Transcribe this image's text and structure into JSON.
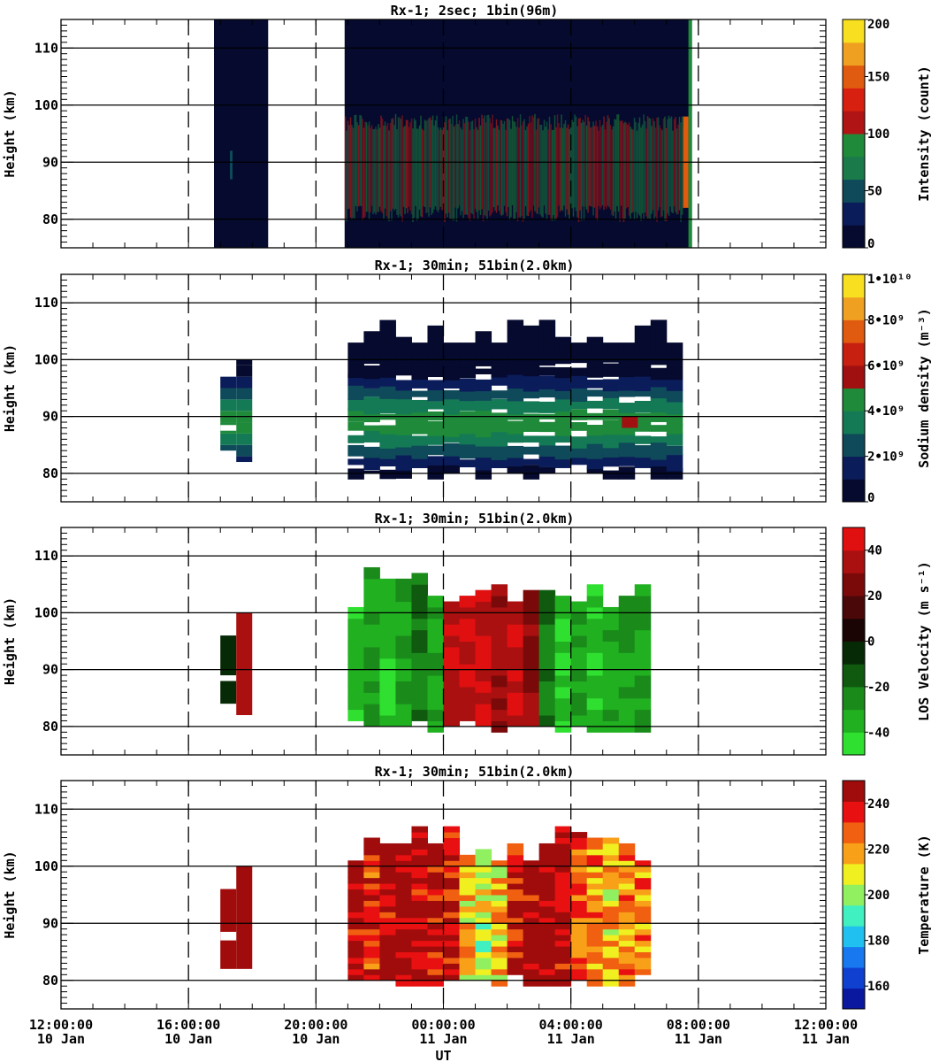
{
  "chart_data": [
    {
      "type": "heatmap",
      "title": "Rx-1;  2sec; 1bin(96m)",
      "ylabel": "Height (km)",
      "ylim": [
        75,
        115
      ],
      "yticks": [
        "80",
        "90",
        "100",
        "110"
      ],
      "colorbar_label": "Intensity (count)",
      "colorbar_ticks": [
        "0",
        "50",
        "100",
        "150",
        "200"
      ],
      "colorbar_range": [
        0,
        200
      ],
      "colorbar_steps": 8,
      "data_blocks": [
        {
          "start_hour": 16.8,
          "end_hour": 18.5,
          "kind": "dark"
        },
        {
          "start_hour": 20.9,
          "end_hour": 31.8,
          "kind": "intensity"
        }
      ],
      "layer": {
        "bottom_km": 81,
        "top_km": 97,
        "peak_km": 89
      }
    },
    {
      "type": "heatmap",
      "title": "Rx-1; 30min; 51bin(2.0km)",
      "ylabel": "Height (km)",
      "ylim": [
        75,
        115
      ],
      "yticks": [
        "80",
        "90",
        "100",
        "110"
      ],
      "colorbar_label": "Sodium density (m⁻³)",
      "colorbar_ticks": [
        "0",
        "2•10⁹",
        "4•10⁹",
        "6•10⁹",
        "8•10⁹",
        "1•10¹⁰"
      ],
      "colorbar_range": [
        0,
        10000000000
      ],
      "colorbar_steps": 10,
      "cells": [
        {
          "start_hour": 17.0,
          "end_hour": 17.5,
          "bottom_km": 84,
          "top_km": 97
        },
        {
          "start_hour": 17.5,
          "end_hour": 18.0,
          "bottom_km": 82,
          "top_km": 100
        },
        {
          "start_hour": 21.0,
          "end_hour": 31.5,
          "bottom_km": 79,
          "top_km": 107
        }
      ]
    },
    {
      "type": "heatmap",
      "title": "Rx-1; 30min; 51bin(2.0km)",
      "ylabel": "Height (km)",
      "ylim": [
        75,
        115
      ],
      "yticks": [
        "80",
        "90",
        "100",
        "110"
      ],
      "colorbar_label": "LOS Velocity (m s⁻¹)",
      "colorbar_ticks": [
        "-40",
        "-20",
        "0",
        "20",
        "40"
      ],
      "colorbar_range": [
        -50,
        50
      ],
      "colorbar_steps": 10,
      "columns_velocity": [
        -40,
        -30,
        -40,
        -30,
        -20,
        -30,
        40,
        40,
        40,
        30,
        40,
        30,
        -20,
        -40,
        -30,
        -40,
        -30,
        -30,
        -30
      ],
      "columns_start_hour": 21.0,
      "column_width_hour": 0.5
    },
    {
      "type": "heatmap",
      "title": "Rx-1; 30min; 51bin(2.0km)",
      "ylabel": "Height (km)",
      "ylim": [
        75,
        115
      ],
      "yticks": [
        "80",
        "90",
        "100",
        "110"
      ],
      "colorbar_label": "Temperature (K)",
      "colorbar_ticks": [
        "160",
        "180",
        "200",
        "220",
        "240"
      ],
      "colorbar_range": [
        150,
        250
      ],
      "colorbar_steps": 10,
      "columns_temperature": [
        245,
        230,
        245,
        250,
        245,
        240,
        235,
        215,
        205,
        215,
        235,
        245,
        250,
        245,
        230,
        220,
        215,
        225,
        220
      ],
      "columns_start_hour": 21.0,
      "column_width_hour": 0.5
    }
  ],
  "x_axis": {
    "label": "UT",
    "range_hours": [
      12,
      36
    ],
    "ticks": [
      {
        "hour": 12,
        "time": "12:00:00",
        "date": "10 Jan"
      },
      {
        "hour": 16,
        "time": "16:00:00",
        "date": "10 Jan"
      },
      {
        "hour": 20,
        "time": "20:00:00",
        "date": "10 Jan"
      },
      {
        "hour": 24,
        "time": "00:00:00",
        "date": "11 Jan"
      },
      {
        "hour": 28,
        "time": "04:00:00",
        "date": "11 Jan"
      },
      {
        "hour": 32,
        "time": "08:00:00",
        "date": "11 Jan"
      },
      {
        "hour": 36,
        "time": "12:00:00",
        "date": "11 Jan"
      }
    ]
  },
  "colors": {
    "intensity": [
      "#050a2e",
      "#0b1c5a",
      "#0f4a5a",
      "#1a7a4a",
      "#1e8a3a",
      "#b01414",
      "#d82010",
      "#e05a10",
      "#f0a020",
      "#f8e020"
    ],
    "density": [
      "#050a2e",
      "#0b1c5a",
      "#0f4a5a",
      "#147a55",
      "#1e8a3a",
      "#a01010",
      "#c82010",
      "#e05a10",
      "#f0a020",
      "#f8e020"
    ],
    "velocity": [
      "#30e030",
      "#20b020",
      "#1a8a1a",
      "#105a10",
      "#062a06",
      "#1a0404",
      "#4a0808",
      "#7a0a0a",
      "#aa1010",
      "#e01010"
    ],
    "temperature": [
      "#0a18a0",
      "#1040d0",
      "#1878f0",
      "#20c0f0",
      "#40f0c0",
      "#90f060",
      "#f0f020",
      "#f8a018",
      "#f06010",
      "#e81010",
      "#a00c0c"
    ]
  }
}
